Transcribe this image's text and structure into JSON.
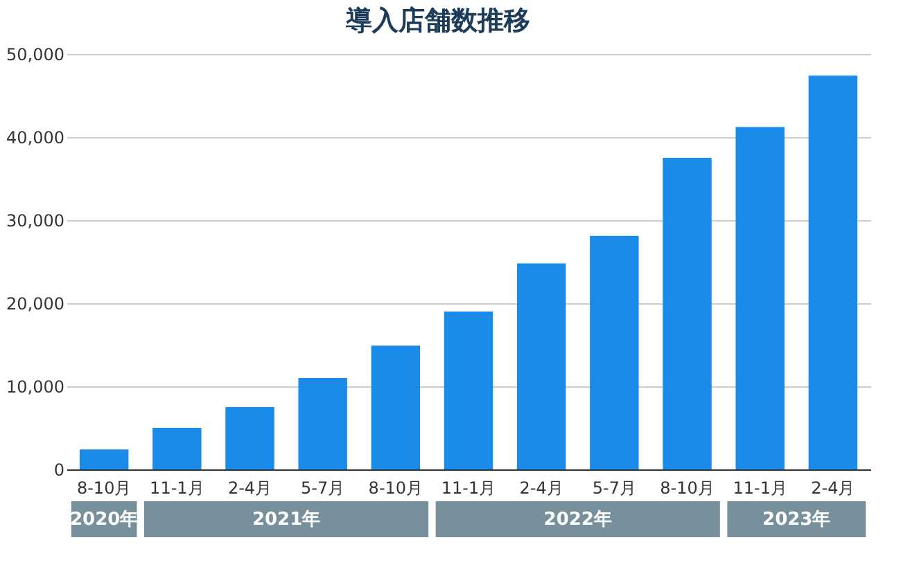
{
  "chart_data": {
    "type": "bar",
    "title": "導入店舗数推移",
    "categories": [
      "8-10月",
      "11-1月",
      "2-4月",
      "5-7月",
      "8-10月",
      "11-1月",
      "2-4月",
      "5-7月",
      "8-10月",
      "11-1月",
      "2-4月"
    ],
    "values": [
      2400,
      5000,
      7500,
      11000,
      14900,
      19000,
      24800,
      28100,
      37500,
      41200,
      47400
    ],
    "color": "#1a8be9",
    "ylim": [
      0,
      50000
    ],
    "yticks": [
      0,
      {
        "value": 10000,
        "label": "10,000"
      },
      {
        "value": 20000,
        "label": "20,000"
      },
      {
        "value": 30000,
        "label": "30,000"
      },
      {
        "value": 40000,
        "label": "40,000"
      },
      {
        "value": 50000,
        "label": "50,000"
      }
    ],
    "grid": "y",
    "annotations": [
      "2020年",
      "2021年",
      "2022年",
      "2023年"
    ]
  }
}
